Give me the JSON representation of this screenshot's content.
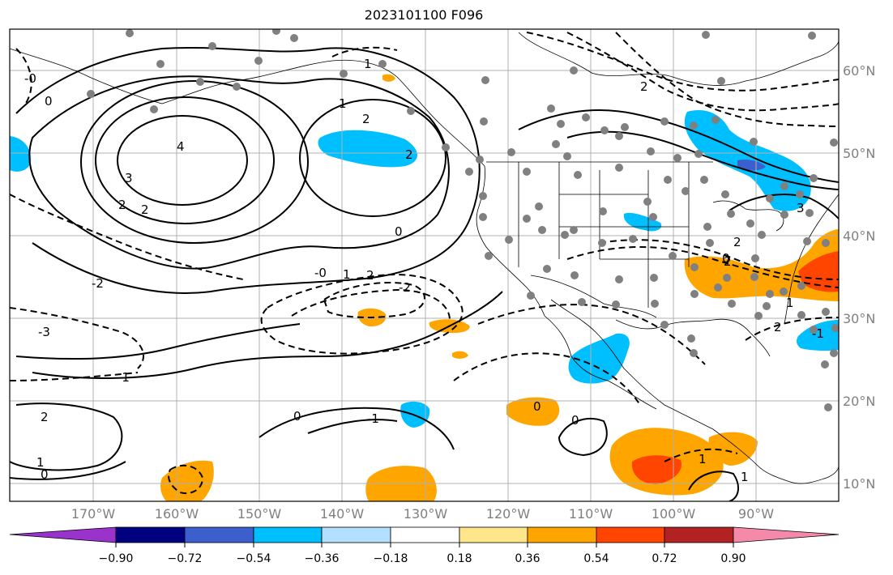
{
  "title": "2023101100 F096",
  "map": {
    "lon_ticks": [
      "170°W",
      "160°W",
      "150°W",
      "140°W",
      "130°W",
      "120°W",
      "110°W",
      "100°W",
      "90°W"
    ],
    "lat_ticks": [
      "60°N",
      "50°N",
      "40°N",
      "30°N",
      "20°N",
      "10°N"
    ],
    "grid": true,
    "contour_labels": [
      "-0",
      "0",
      "1",
      "2",
      "4",
      "3",
      "2",
      "2",
      "0",
      "-0",
      "1",
      "2",
      "2",
      "-2",
      "-3",
      "-2",
      "-1",
      "1",
      "2",
      "3",
      "2",
      "1",
      "0",
      "-1",
      "2",
      "1",
      "0",
      "0",
      "0",
      "0",
      "1",
      "2",
      "-1",
      "1",
      "2"
    ],
    "shading_colors": {
      "strong_positive": "#ff4500",
      "positive": "#ffa500",
      "weak_positive": "#ffe680",
      "negative": "#00bfff",
      "strong_negative": "#3366cc",
      "station_dots": "#808080"
    }
  },
  "colorbar": {
    "colors": [
      "#9933cc",
      "#000080",
      "#3b5fcc",
      "#00bfff",
      "#b3e0ff",
      "#ffffff",
      "#ffe68a",
      "#ffa500",
      "#ff4500",
      "#b22222",
      "#f489a9"
    ],
    "tick_labels": [
      "−0.90",
      "−0.72",
      "−0.54",
      "−0.36",
      "−0.18",
      "0.18",
      "0.36",
      "0.54",
      "0.72",
      "0.90"
    ]
  }
}
